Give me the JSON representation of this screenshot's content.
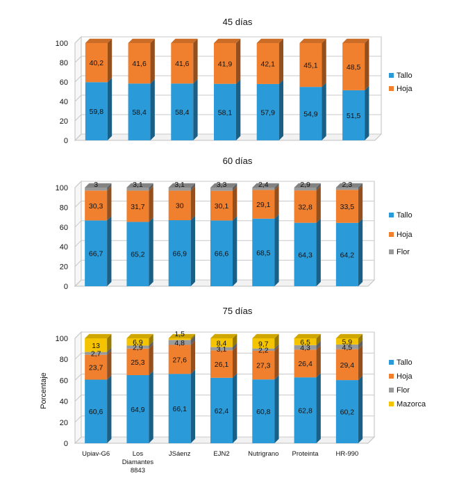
{
  "colors": {
    "Tallo": "#2a9ad8",
    "Hoja": "#f0802e",
    "Flor": "#9a9a9a",
    "Mazorca": "#f5c400"
  },
  "chart_data": [
    {
      "type": "bar",
      "stacked": true,
      "three_d": true,
      "title": "45 días",
      "xlabel": "",
      "ylabel": "",
      "ylim": [
        0,
        100
      ],
      "yticks": [
        0,
        20,
        40,
        60,
        80,
        100
      ],
      "categories": [
        "Upiav-G6",
        "Los Diamantes 8843",
        "JSáenz",
        "EJN2",
        "Nutrigrano",
        "Proteinta",
        "HR-990"
      ],
      "show_categories": false,
      "legend_position": "right",
      "series": [
        {
          "name": "Tallo",
          "values": [
            59.8,
            58.4,
            58.4,
            58.1,
            57.9,
            54.9,
            51.5
          ],
          "labels": [
            "59,8",
            "58,4",
            "58,4",
            "58,1",
            "57,9",
            "54,9",
            "51,5"
          ]
        },
        {
          "name": "Hoja",
          "values": [
            40.2,
            41.6,
            41.6,
            41.9,
            42.1,
            45.1,
            48.5
          ],
          "labels": [
            "40,2",
            "41,6",
            "41,6",
            "41,9",
            "42,1",
            "45,1",
            "48,5"
          ]
        }
      ]
    },
    {
      "type": "bar",
      "stacked": true,
      "three_d": true,
      "title": "60 días",
      "xlabel": "",
      "ylabel": "",
      "ylim": [
        0,
        100
      ],
      "yticks": [
        0,
        20,
        40,
        60,
        80,
        100
      ],
      "categories": [
        "Upiav-G6",
        "Los Diamantes 8843",
        "JSáenz",
        "EJN2",
        "Nutrigrano",
        "Proteinta",
        "HR-990"
      ],
      "show_categories": false,
      "legend_position": "right",
      "series": [
        {
          "name": "Tallo",
          "values": [
            66.7,
            65.2,
            66.9,
            66.6,
            68.5,
            64.3,
            64.2
          ],
          "labels": [
            "66,7",
            "65,2",
            "66,9",
            "66,6",
            "68,5",
            "64,3",
            "64,2"
          ]
        },
        {
          "name": "Hoja",
          "values": [
            30.3,
            31.7,
            30,
            30.1,
            29.1,
            32.8,
            33.5
          ],
          "labels": [
            "30,3",
            "31,7",
            "30",
            "30,1",
            "29,1",
            "32,8",
            "33,5"
          ]
        },
        {
          "name": "Flor",
          "values": [
            3,
            3.1,
            3.1,
            3.3,
            2.4,
            2.9,
            2.3
          ],
          "labels": [
            "3",
            "3,1",
            "3,1",
            "3,3",
            "2,4",
            "2,9",
            "2,3"
          ]
        }
      ]
    },
    {
      "type": "bar",
      "stacked": true,
      "three_d": true,
      "title": "75 días",
      "xlabel": "",
      "ylabel": "Porcentaje",
      "ylim": [
        0,
        100
      ],
      "yticks": [
        0,
        20,
        40,
        60,
        80,
        100
      ],
      "categories": [
        "Upiav-G6",
        "Los Diamantes 8843",
        "JSáenz",
        "EJN2",
        "Nutrigrano",
        "Proteinta",
        "HR-990"
      ],
      "show_categories": true,
      "legend_position": "right",
      "series": [
        {
          "name": "Tallo",
          "values": [
            60.6,
            64.9,
            66.1,
            62.4,
            60.8,
            62.8,
            60.2
          ],
          "labels": [
            "60,6",
            "64,9",
            "66,1",
            "62,4",
            "60,8",
            "62,8",
            "60,2"
          ]
        },
        {
          "name": "Hoja",
          "values": [
            23.7,
            25.3,
            27.6,
            26.1,
            27.3,
            26.4,
            29.4
          ],
          "labels": [
            "23,7",
            "25,3",
            "27,6",
            "26,1",
            "27,3",
            "26,4",
            "29,4"
          ]
        },
        {
          "name": "Flor",
          "values": [
            2.7,
            2.9,
            4.8,
            3.1,
            2.2,
            4.3,
            4.5
          ],
          "labels": [
            "2,7",
            "2,9",
            "4,8",
            "3,1",
            "2,2",
            "4,3",
            "4,5"
          ]
        },
        {
          "name": "Mazorca",
          "values": [
            13,
            6.9,
            1.5,
            8.4,
            9.7,
            6.5,
            5.9
          ],
          "labels": [
            "13",
            "6,9",
            "1,5",
            "8,4",
            "9,7",
            "6,5",
            "5,9"
          ]
        }
      ]
    }
  ]
}
